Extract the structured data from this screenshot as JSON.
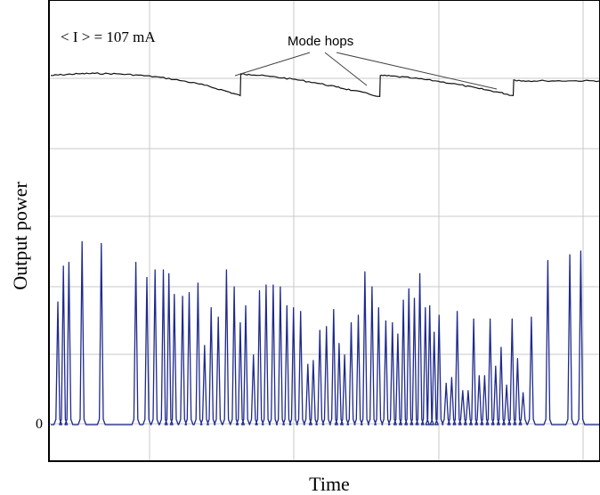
{
  "chart_data": {
    "type": "line",
    "xlabel": "Time",
    "ylabel": "Output power",
    "y_tick_labels": [
      "0"
    ],
    "annotations": {
      "current": "< I > = 107 mA",
      "mode_hops": "Mode hops"
    },
    "grid": true,
    "colors": {
      "power_trace": "#111111",
      "pulse_trace": "#1f2a8c",
      "grid": "#c8c8c8",
      "frame": "#000000"
    },
    "series": [
      {
        "x": [
          0,
          0.02,
          0.05,
          0.08,
          0.12,
          0.16,
          0.2,
          0.24,
          0.28,
          0.32,
          0.345,
          0.346,
          0.36,
          0.4,
          0.44,
          0.48,
          0.52,
          0.55,
          0.599,
          0.6,
          0.62,
          0.66,
          0.7,
          0.74,
          0.78,
          0.815,
          0.842,
          0.843,
          0.86,
          0.9,
          0.95,
          1.0
        ],
        "y": [
          0.95,
          0.96,
          0.97,
          0.975,
          0.97,
          0.955,
          0.93,
          0.89,
          0.84,
          0.77,
          0.72,
          0.97,
          0.965,
          0.94,
          0.91,
          0.87,
          0.82,
          0.78,
          0.71,
          0.95,
          0.945,
          0.92,
          0.89,
          0.85,
          0.8,
          0.76,
          0.72,
          0.9,
          0.89,
          0.89,
          0.89,
          0.89
        ]
      },
      {
        "peaks_x": [
          0.013,
          0.023,
          0.033,
          0.057,
          0.092,
          0.155,
          0.175,
          0.19,
          0.205,
          0.215,
          0.225,
          0.24,
          0.252,
          0.268,
          0.28,
          0.292,
          0.305,
          0.32,
          0.334,
          0.345,
          0.355,
          0.369,
          0.38,
          0.392,
          0.405,
          0.418,
          0.43,
          0.442,
          0.455,
          0.468,
          0.478,
          0.49,
          0.502,
          0.515,
          0.525,
          0.535,
          0.547,
          0.56,
          0.572,
          0.585,
          0.597,
          0.61,
          0.622,
          0.632,
          0.642,
          0.652,
          0.662,
          0.672,
          0.682,
          0.69,
          0.698,
          0.707,
          0.72,
          0.73,
          0.74,
          0.75,
          0.76,
          0.77,
          0.78,
          0.79,
          0.8,
          0.81,
          0.82,
          0.83,
          0.84,
          0.85,
          0.86,
          0.875,
          0.905,
          0.945,
          0.965
        ],
        "peaks_y": [
          0.65,
          0.84,
          0.86,
          0.97,
          0.96,
          0.86,
          0.78,
          0.82,
          0.82,
          0.8,
          0.69,
          0.68,
          0.7,
          0.75,
          0.42,
          0.62,
          0.57,
          0.82,
          0.73,
          0.54,
          0.63,
          0.37,
          0.71,
          0.74,
          0.74,
          0.73,
          0.63,
          0.62,
          0.6,
          0.32,
          0.34,
          0.5,
          0.52,
          0.61,
          0.43,
          0.37,
          0.54,
          0.58,
          0.81,
          0.73,
          0.62,
          0.55,
          0.54,
          0.48,
          0.66,
          0.72,
          0.67,
          0.8,
          0.62,
          0.63,
          0.49,
          0.58,
          0.22,
          0.25,
          0.6,
          0.18,
          0.18,
          0.56,
          0.26,
          0.26,
          0.56,
          0.31,
          0.41,
          0.21,
          0.56,
          0.35,
          0.17,
          0.57,
          0.87,
          0.9,
          0.92
        ]
      }
    ]
  }
}
